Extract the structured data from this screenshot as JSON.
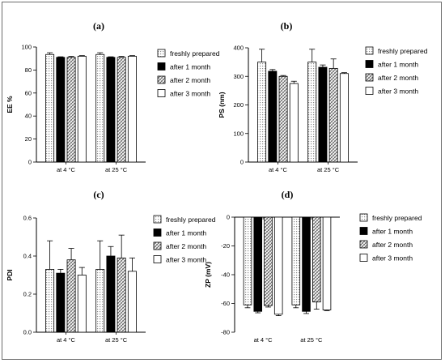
{
  "chart_data": [
    {
      "type": "bar",
      "panel_label": "(a)",
      "ylabel": "EE %",
      "categories": [
        "at 4 °C",
        "at 25 °C"
      ],
      "ylim": [
        0,
        100
      ],
      "yticks": [
        "0",
        "20",
        "40",
        "60",
        "80",
        "100"
      ],
      "series": [
        {
          "name": "freshly prepared",
          "values": [
            93.5,
            93.5
          ],
          "errors": [
            1.5,
            1.5
          ]
        },
        {
          "name": "after 1 month",
          "values": [
            91,
            91
          ],
          "errors": [
            0.5,
            0.5
          ]
        },
        {
          "name": "after 2 month",
          "values": [
            91,
            91
          ],
          "errors": [
            0.8,
            0.8
          ]
        },
        {
          "name": "after 3 month",
          "values": [
            92,
            92
          ],
          "errors": [
            0.5,
            0.5
          ]
        }
      ]
    },
    {
      "type": "bar",
      "panel_label": "(b)",
      "ylabel": "PS (nm)",
      "categories": [
        "at 4 °C",
        "at 25 °C"
      ],
      "ylim": [
        0,
        400
      ],
      "yticks": [
        "0",
        "100",
        "200",
        "300",
        "400"
      ],
      "series": [
        {
          "name": "freshly prepared",
          "values": [
            350,
            350
          ],
          "errors": [
            45,
            45
          ]
        },
        {
          "name": "after 1 month",
          "values": [
            318,
            332
          ],
          "errors": [
            6,
            8
          ]
        },
        {
          "name": "after 2 month",
          "values": [
            300,
            328
          ],
          "errors": [
            3,
            33
          ]
        },
        {
          "name": "after 3 month",
          "values": [
            275,
            310
          ],
          "errors": [
            8,
            3
          ]
        }
      ]
    },
    {
      "type": "bar",
      "panel_label": "(c)",
      "ylabel": "PDI",
      "categories": [
        "at 4 °C",
        "at 25 °C"
      ],
      "ylim": [
        0,
        0.6
      ],
      "yticks": [
        "0.0",
        "0.2",
        "0.4",
        "0.6"
      ],
      "series": [
        {
          "name": "freshly prepared",
          "values": [
            0.33,
            0.33
          ],
          "errors": [
            0.15,
            0.15
          ]
        },
        {
          "name": "after 1 month",
          "values": [
            0.31,
            0.4
          ],
          "errors": [
            0.02,
            0.05
          ]
        },
        {
          "name": "after 2 month",
          "values": [
            0.38,
            0.39
          ],
          "errors": [
            0.06,
            0.12
          ]
        },
        {
          "name": "after 3 month",
          "values": [
            0.3,
            0.32
          ],
          "errors": [
            0.04,
            0.07
          ]
        }
      ]
    },
    {
      "type": "bar",
      "panel_label": "(d)",
      "ylabel": "ZP (mV)",
      "categories": [
        "at 4 °C",
        "at 25 °C"
      ],
      "ylim": [
        -80,
        0
      ],
      "yticks": [
        "-80",
        "-60",
        "-40",
        "-20",
        "0"
      ],
      "series": [
        {
          "name": "freshly prepared",
          "values": [
            -61,
            -61
          ],
          "errors": [
            2,
            2
          ]
        },
        {
          "name": "after 1 month",
          "values": [
            -65.5,
            -65.5
          ],
          "errors": [
            1,
            1.5
          ]
        },
        {
          "name": "after 2 month",
          "values": [
            -61.5,
            -59
          ],
          "errors": [
            1,
            5
          ]
        },
        {
          "name": "after 3 month",
          "values": [
            -67.5,
            -64.5
          ],
          "errors": [
            1,
            0.5
          ]
        }
      ]
    }
  ]
}
